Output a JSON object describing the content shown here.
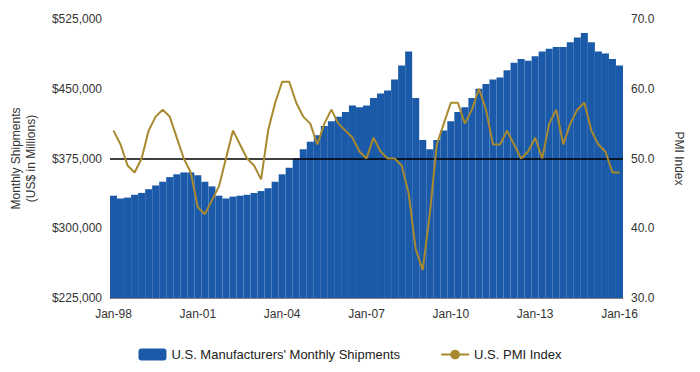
{
  "chart_data": {
    "type": "bar",
    "ylabel": "Monthly Shipments\n(US$ in Millions)",
    "y2label": "PMI Index",
    "categories": [
      "Jan-98",
      null,
      null,
      null,
      null,
      null,
      null,
      null,
      null,
      null,
      null,
      null,
      "Jan-01",
      null,
      null,
      null,
      null,
      null,
      null,
      null,
      null,
      null,
      null,
      null,
      "Jan-04",
      null,
      null,
      null,
      null,
      null,
      null,
      null,
      null,
      null,
      null,
      null,
      "Jan-07",
      null,
      null,
      null,
      null,
      null,
      null,
      null,
      null,
      null,
      null,
      null,
      "Jan-10",
      null,
      null,
      null,
      null,
      null,
      null,
      null,
      null,
      null,
      null,
      null,
      "Jan-13",
      null,
      null,
      null,
      null,
      null,
      null,
      null,
      null,
      null,
      null,
      null,
      "Jan-16"
    ],
    "series": [
      {
        "name": "U.S. Manufacturers' Monthly Shipments",
        "type": "bar",
        "color": "#1B5AA8",
        "values": [
          335000,
          332000,
          333000,
          336000,
          338000,
          342000,
          346000,
          350000,
          355000,
          358000,
          360000,
          360000,
          357000,
          350000,
          345000,
          335000,
          332000,
          334000,
          335000,
          336000,
          338000,
          340000,
          343000,
          350000,
          358000,
          365000,
          375000,
          385000,
          393000,
          400000,
          410000,
          415000,
          420000,
          425000,
          432000,
          430000,
          432000,
          440000,
          445000,
          448000,
          460000,
          475000,
          490000,
          440000,
          395000,
          385000,
          395000,
          405000,
          415000,
          425000,
          430000,
          440000,
          450000,
          455000,
          460000,
          462000,
          470000,
          478000,
          482000,
          480000,
          485000,
          490000,
          493000,
          495000,
          495000,
          500000,
          505000,
          510000,
          500000,
          490000,
          488000,
          482000,
          475000
        ]
      },
      {
        "name": "U.S. PMI Index",
        "type": "line",
        "axis": "y2",
        "color": "#A8892E",
        "values": [
          54,
          52,
          49,
          48,
          50,
          54,
          56,
          57,
          56,
          53,
          50,
          48,
          43,
          42,
          44,
          46,
          50,
          54,
          52,
          50,
          49,
          47,
          54,
          58,
          61,
          61,
          58,
          56,
          55,
          52,
          55,
          57,
          55,
          54,
          53,
          51,
          50,
          53,
          51,
          50,
          50,
          49,
          45,
          37,
          34,
          42,
          52,
          55,
          58,
          58,
          55,
          57,
          60,
          57,
          52,
          52,
          54,
          52,
          50,
          51,
          53,
          50,
          55,
          57,
          52,
          55,
          57,
          58,
          54,
          52,
          51,
          48,
          48
        ]
      }
    ],
    "ylim": [
      225000,
      525000
    ],
    "yticks": [
      {
        "value": 225000,
        "label": "$225,000"
      },
      {
        "value": 300000,
        "label": "$300,000"
      },
      {
        "value": 375000,
        "label": "$375,000"
      },
      {
        "value": 450000,
        "label": "$450,000"
      },
      {
        "value": 525000,
        "label": "$525,000"
      }
    ],
    "y2lim": [
      30,
      70
    ],
    "y2ticks": [
      {
        "value": 30,
        "label": "30.0"
      },
      {
        "value": 40,
        "label": "40.0"
      },
      {
        "value": 50,
        "label": "50.0"
      },
      {
        "value": 60,
        "label": "60.0"
      },
      {
        "value": 70,
        "label": "70.0"
      }
    ],
    "hlines": [
      {
        "axis": "y2",
        "value": 50,
        "color": "#000000"
      }
    ],
    "grid": false,
    "legend": "bottom"
  }
}
